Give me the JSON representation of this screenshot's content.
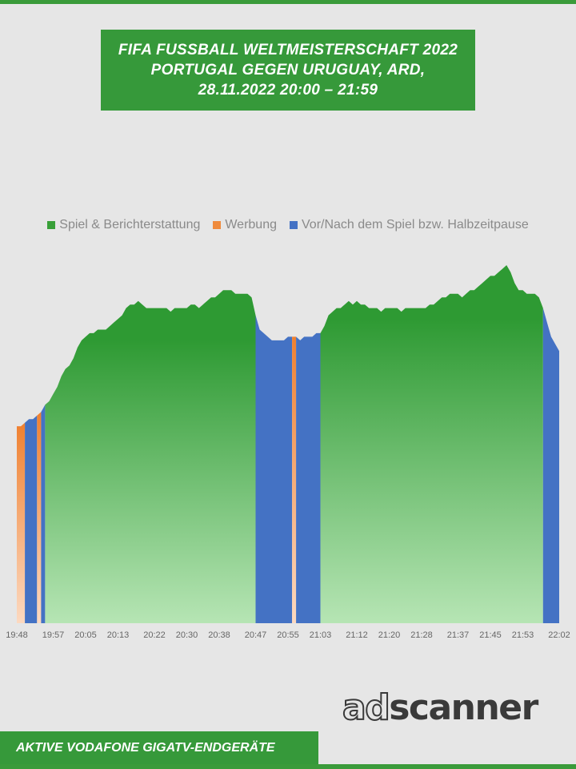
{
  "header": {
    "title_lines": [
      "FIFA FUSSBALL WELTMEISTERSCHAFT 2022",
      "PORTUGAL GEGEN URUGUAY, ARD,",
      "28.11.2022  20:00 – 21:59"
    ]
  },
  "legend": [
    {
      "label": "Spiel & Berichterstattung",
      "color": "#38a038"
    },
    {
      "label": "Werbung",
      "color": "#ef8a3c"
    },
    {
      "label": "Vor/Nach dem Spiel bzw. Halbzeitpause",
      "color": "#4472c4"
    }
  ],
  "footer": {
    "logo_ad": "ad",
    "logo_scanner": "scanner",
    "label": "AKTIVE VODAFONE GIGATV-ENDGERÄTE"
  },
  "chart_data": {
    "type": "area",
    "title": "FIFA FUSSBALL WELTMEISTERSCHAFT 2022 PORTUGAL GEGEN URUGUAY, ARD, 28.11.2022 20:00 – 21:59",
    "x_ticks": [
      "19:48",
      "19:57",
      "20:05",
      "20:13",
      "20:22",
      "20:30",
      "20:38",
      "20:47",
      "20:55",
      "21:03",
      "21:12",
      "21:20",
      "21:28",
      "21:37",
      "21:45",
      "21:53",
      "22:02"
    ],
    "x_range": [
      "19:48",
      "22:02"
    ],
    "y_axis_shown": false,
    "grid": false,
    "legend_position": "top",
    "series": [
      {
        "name": "Spiel & Berichterstattung",
        "color": "#38a038"
      },
      {
        "name": "Werbung",
        "color": "#ef8a3c"
      },
      {
        "name": "Vor/Nach dem Spiel bzw. Halbzeitpause",
        "color": "#4472c4"
      }
    ],
    "values_relative_to_peak": [
      [
        "19:48",
        0.55
      ],
      [
        "19:49",
        0.55
      ],
      [
        "19:50",
        0.56
      ],
      [
        "19:51",
        0.57
      ],
      [
        "19:52",
        0.57
      ],
      [
        "19:53",
        0.58
      ],
      [
        "19:54",
        0.59
      ],
      [
        "19:55",
        0.61
      ],
      [
        "19:56",
        0.62
      ],
      [
        "19:57",
        0.64
      ],
      [
        "19:58",
        0.66
      ],
      [
        "19:59",
        0.69
      ],
      [
        "20:00",
        0.71
      ],
      [
        "20:01",
        0.72
      ],
      [
        "20:02",
        0.74
      ],
      [
        "20:03",
        0.77
      ],
      [
        "20:04",
        0.79
      ],
      [
        "20:05",
        0.8
      ],
      [
        "20:06",
        0.81
      ],
      [
        "20:07",
        0.81
      ],
      [
        "20:08",
        0.82
      ],
      [
        "20:09",
        0.82
      ],
      [
        "20:10",
        0.82
      ],
      [
        "20:11",
        0.83
      ],
      [
        "20:12",
        0.84
      ],
      [
        "20:13",
        0.85
      ],
      [
        "20:14",
        0.86
      ],
      [
        "20:15",
        0.88
      ],
      [
        "20:16",
        0.89
      ],
      [
        "20:17",
        0.89
      ],
      [
        "20:18",
        0.9
      ],
      [
        "20:19",
        0.89
      ],
      [
        "20:20",
        0.88
      ],
      [
        "20:21",
        0.88
      ],
      [
        "20:22",
        0.88
      ],
      [
        "20:23",
        0.88
      ],
      [
        "20:24",
        0.88
      ],
      [
        "20:25",
        0.88
      ],
      [
        "20:26",
        0.87
      ],
      [
        "20:27",
        0.88
      ],
      [
        "20:28",
        0.88
      ],
      [
        "20:29",
        0.88
      ],
      [
        "20:30",
        0.88
      ],
      [
        "20:31",
        0.89
      ],
      [
        "20:32",
        0.89
      ],
      [
        "20:33",
        0.88
      ],
      [
        "20:34",
        0.89
      ],
      [
        "20:35",
        0.9
      ],
      [
        "20:36",
        0.91
      ],
      [
        "20:37",
        0.91
      ],
      [
        "20:38",
        0.92
      ],
      [
        "20:39",
        0.93
      ],
      [
        "20:40",
        0.93
      ],
      [
        "20:41",
        0.93
      ],
      [
        "20:42",
        0.92
      ],
      [
        "20:43",
        0.92
      ],
      [
        "20:44",
        0.92
      ],
      [
        "20:45",
        0.92
      ],
      [
        "20:46",
        0.91
      ],
      [
        "20:47",
        0.86
      ],
      [
        "20:48",
        0.82
      ],
      [
        "20:49",
        0.81
      ],
      [
        "20:50",
        0.8
      ],
      [
        "20:51",
        0.79
      ],
      [
        "20:52",
        0.79
      ],
      [
        "20:53",
        0.79
      ],
      [
        "20:54",
        0.79
      ],
      [
        "20:55",
        0.8
      ],
      [
        "20:56",
        0.8
      ],
      [
        "20:57",
        0.8
      ],
      [
        "20:58",
        0.79
      ],
      [
        "20:59",
        0.8
      ],
      [
        "21:00",
        0.8
      ],
      [
        "21:01",
        0.8
      ],
      [
        "21:02",
        0.81
      ],
      [
        "21:03",
        0.81
      ],
      [
        "21:04",
        0.83
      ],
      [
        "21:05",
        0.86
      ],
      [
        "21:06",
        0.87
      ],
      [
        "21:07",
        0.88
      ],
      [
        "21:08",
        0.88
      ],
      [
        "21:09",
        0.89
      ],
      [
        "21:10",
        0.9
      ],
      [
        "21:11",
        0.89
      ],
      [
        "21:12",
        0.9
      ],
      [
        "21:13",
        0.89
      ],
      [
        "21:14",
        0.89
      ],
      [
        "21:15",
        0.88
      ],
      [
        "21:16",
        0.88
      ],
      [
        "21:17",
        0.88
      ],
      [
        "21:18",
        0.87
      ],
      [
        "21:19",
        0.88
      ],
      [
        "21:20",
        0.88
      ],
      [
        "21:21",
        0.88
      ],
      [
        "21:22",
        0.88
      ],
      [
        "21:23",
        0.87
      ],
      [
        "21:24",
        0.88
      ],
      [
        "21:25",
        0.88
      ],
      [
        "21:26",
        0.88
      ],
      [
        "21:27",
        0.88
      ],
      [
        "21:28",
        0.88
      ],
      [
        "21:29",
        0.88
      ],
      [
        "21:30",
        0.89
      ],
      [
        "21:31",
        0.89
      ],
      [
        "21:32",
        0.9
      ],
      [
        "21:33",
        0.91
      ],
      [
        "21:34",
        0.91
      ],
      [
        "21:35",
        0.92
      ],
      [
        "21:36",
        0.92
      ],
      [
        "21:37",
        0.92
      ],
      [
        "21:38",
        0.91
      ],
      [
        "21:39",
        0.92
      ],
      [
        "21:40",
        0.93
      ],
      [
        "21:41",
        0.93
      ],
      [
        "21:42",
        0.94
      ],
      [
        "21:43",
        0.95
      ],
      [
        "21:44",
        0.96
      ],
      [
        "21:45",
        0.97
      ],
      [
        "21:46",
        0.97
      ],
      [
        "21:47",
        0.98
      ],
      [
        "21:48",
        0.99
      ],
      [
        "21:49",
        1.0
      ],
      [
        "21:50",
        0.98
      ],
      [
        "21:51",
        0.95
      ],
      [
        "21:52",
        0.93
      ],
      [
        "21:53",
        0.93
      ],
      [
        "21:54",
        0.92
      ],
      [
        "21:55",
        0.92
      ],
      [
        "21:56",
        0.92
      ],
      [
        "21:57",
        0.91
      ],
      [
        "21:58",
        0.88
      ],
      [
        "21:59",
        0.84
      ],
      [
        "22:00",
        0.8
      ],
      [
        "22:01",
        0.78
      ],
      [
        "22:02",
        0.76
      ]
    ],
    "segments": [
      {
        "series": "Werbung",
        "from": "19:48",
        "to": "19:50"
      },
      {
        "series": "Vor/Nach dem Spiel bzw. Halbzeitpause",
        "from": "19:50",
        "to": "19:53"
      },
      {
        "series": "Werbung",
        "from": "19:53",
        "to": "19:54"
      },
      {
        "series": "Vor/Nach dem Spiel bzw. Halbzeitpause",
        "from": "19:54",
        "to": "19:55"
      },
      {
        "series": "Spiel & Berichterstattung",
        "from": "19:55",
        "to": "20:47"
      },
      {
        "series": "Vor/Nach dem Spiel bzw. Halbzeitpause",
        "from": "20:47",
        "to": "20:56"
      },
      {
        "series": "Werbung",
        "from": "20:56",
        "to": "20:57"
      },
      {
        "series": "Vor/Nach dem Spiel bzw. Halbzeitpause",
        "from": "20:57",
        "to": "21:03"
      },
      {
        "series": "Spiel & Berichterstattung",
        "from": "21:03",
        "to": "21:58"
      },
      {
        "series": "Vor/Nach dem Spiel bzw. Halbzeitpause",
        "from": "21:58",
        "to": "22:02"
      }
    ]
  }
}
